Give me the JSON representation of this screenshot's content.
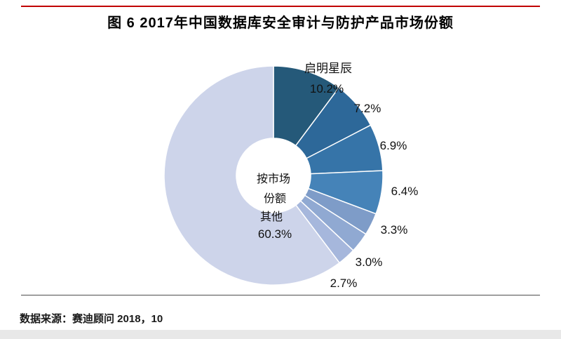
{
  "page": {
    "title": "图 6  2017年中国数据库安全审计与防护产品市场份额",
    "source": "数据来源：赛迪顾问  2018，10"
  },
  "chart_data": {
    "type": "pie",
    "donut": true,
    "title": "图 6  2017年中国数据库安全审计与防护产品市场份额",
    "source": "数据来源：赛迪顾问  2018，10",
    "start_angle_deg": -90,
    "direction": "clockwise",
    "center_label_lines": [
      "按市场",
      "份额"
    ],
    "segments": [
      {
        "name": "启明星辰",
        "value": 10.2,
        "label": "10.2%",
        "color": "#255979",
        "show_name": true
      },
      {
        "name": "",
        "value": 7.2,
        "label": "7.2%",
        "color": "#2d6899"
      },
      {
        "name": "",
        "value": 6.9,
        "label": "6.9%",
        "color": "#3674a8"
      },
      {
        "name": "",
        "value": 6.4,
        "label": "6.4%",
        "color": "#4583b8"
      },
      {
        "name": "",
        "value": 3.3,
        "label": "3.3%",
        "color": "#7e9cc8"
      },
      {
        "name": "",
        "value": 3.0,
        "label": "3.0%",
        "color": "#90a9d2"
      },
      {
        "name": "",
        "value": 2.7,
        "label": "2.7%",
        "color": "#a6b7dc"
      },
      {
        "name": "其他",
        "value": 60.3,
        "label": "60.3%",
        "color": "#cdd4ea",
        "inside": true
      }
    ]
  }
}
